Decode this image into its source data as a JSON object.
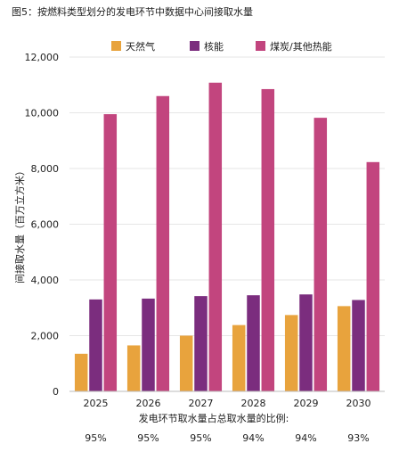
{
  "chart_data": {
    "type": "bar",
    "title": "图5：按燃料类型划分的发电环节中数据中心间接取水量",
    "ylabel": "间接取水量（百万立方米）",
    "xlabel": "",
    "categories": [
      "2025",
      "2026",
      "2027",
      "2028",
      "2029",
      "2030"
    ],
    "ylim": [
      0,
      12000
    ],
    "yticks": [
      0,
      2000,
      4000,
      6000,
      8000,
      10000,
      12000
    ],
    "ytick_labels": [
      "0",
      "2,000",
      "4,000",
      "6,000",
      "8,000",
      "10,000",
      "12,000"
    ],
    "grid": true,
    "legend_position": "top",
    "series": [
      {
        "name": "天然气",
        "color": "#E8A33D",
        "values": [
          1350,
          1650,
          2000,
          2380,
          2740,
          3060
        ]
      },
      {
        "name": "核能",
        "color": "#7B2D7E",
        "values": [
          3300,
          3330,
          3420,
          3450,
          3480,
          3280
        ]
      },
      {
        "name": "煤炭/其他热能",
        "color": "#C2457E",
        "values": [
          9950,
          10600,
          11080,
          10850,
          9820,
          8230
        ]
      }
    ],
    "share_label": "发电环节取水量占总取水量的比例:",
    "share_values": [
      "95%",
      "95%",
      "95%",
      "94%",
      "94%",
      "93%"
    ]
  }
}
